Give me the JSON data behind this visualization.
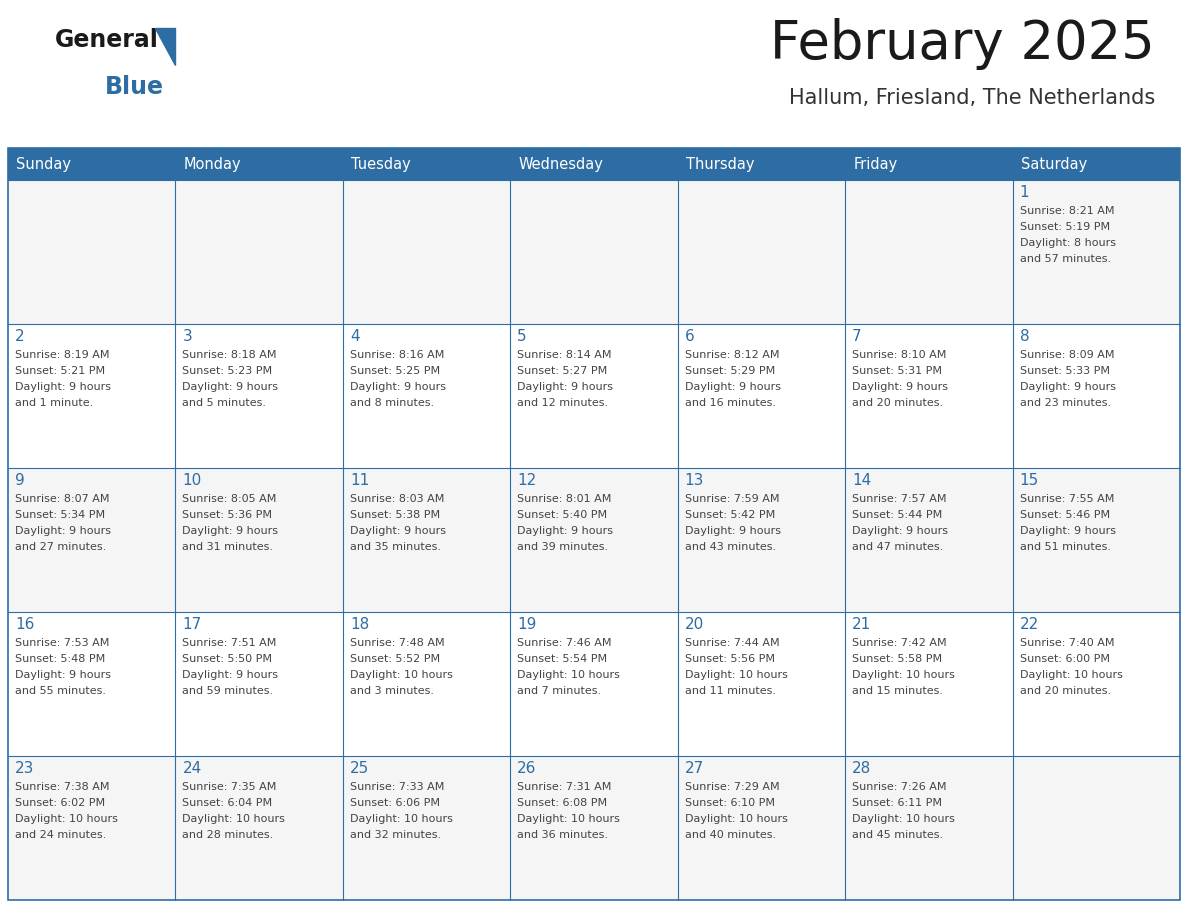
{
  "title": "February 2025",
  "subtitle": "Hallum, Friesland, The Netherlands",
  "header_bg": "#2E6DA4",
  "header_text": "#FFFFFF",
  "cell_bg_odd": "#F5F5F5",
  "cell_bg_even": "#FFFFFF",
  "border_color": "#2E6DA4",
  "title_color": "#1a1a1a",
  "subtitle_color": "#333333",
  "day_number_color": "#2E6DA4",
  "cell_text_color": "#444444",
  "days_of_week": [
    "Sunday",
    "Monday",
    "Tuesday",
    "Wednesday",
    "Thursday",
    "Friday",
    "Saturday"
  ],
  "weeks": [
    [
      {
        "day": null,
        "info": null
      },
      {
        "day": null,
        "info": null
      },
      {
        "day": null,
        "info": null
      },
      {
        "day": null,
        "info": null
      },
      {
        "day": null,
        "info": null
      },
      {
        "day": null,
        "info": null
      },
      {
        "day": 1,
        "info": "Sunrise: 8:21 AM\nSunset: 5:19 PM\nDaylight: 8 hours\nand 57 minutes."
      }
    ],
    [
      {
        "day": 2,
        "info": "Sunrise: 8:19 AM\nSunset: 5:21 PM\nDaylight: 9 hours\nand 1 minute."
      },
      {
        "day": 3,
        "info": "Sunrise: 8:18 AM\nSunset: 5:23 PM\nDaylight: 9 hours\nand 5 minutes."
      },
      {
        "day": 4,
        "info": "Sunrise: 8:16 AM\nSunset: 5:25 PM\nDaylight: 9 hours\nand 8 minutes."
      },
      {
        "day": 5,
        "info": "Sunrise: 8:14 AM\nSunset: 5:27 PM\nDaylight: 9 hours\nand 12 minutes."
      },
      {
        "day": 6,
        "info": "Sunrise: 8:12 AM\nSunset: 5:29 PM\nDaylight: 9 hours\nand 16 minutes."
      },
      {
        "day": 7,
        "info": "Sunrise: 8:10 AM\nSunset: 5:31 PM\nDaylight: 9 hours\nand 20 minutes."
      },
      {
        "day": 8,
        "info": "Sunrise: 8:09 AM\nSunset: 5:33 PM\nDaylight: 9 hours\nand 23 minutes."
      }
    ],
    [
      {
        "day": 9,
        "info": "Sunrise: 8:07 AM\nSunset: 5:34 PM\nDaylight: 9 hours\nand 27 minutes."
      },
      {
        "day": 10,
        "info": "Sunrise: 8:05 AM\nSunset: 5:36 PM\nDaylight: 9 hours\nand 31 minutes."
      },
      {
        "day": 11,
        "info": "Sunrise: 8:03 AM\nSunset: 5:38 PM\nDaylight: 9 hours\nand 35 minutes."
      },
      {
        "day": 12,
        "info": "Sunrise: 8:01 AM\nSunset: 5:40 PM\nDaylight: 9 hours\nand 39 minutes."
      },
      {
        "day": 13,
        "info": "Sunrise: 7:59 AM\nSunset: 5:42 PM\nDaylight: 9 hours\nand 43 minutes."
      },
      {
        "day": 14,
        "info": "Sunrise: 7:57 AM\nSunset: 5:44 PM\nDaylight: 9 hours\nand 47 minutes."
      },
      {
        "day": 15,
        "info": "Sunrise: 7:55 AM\nSunset: 5:46 PM\nDaylight: 9 hours\nand 51 minutes."
      }
    ],
    [
      {
        "day": 16,
        "info": "Sunrise: 7:53 AM\nSunset: 5:48 PM\nDaylight: 9 hours\nand 55 minutes."
      },
      {
        "day": 17,
        "info": "Sunrise: 7:51 AM\nSunset: 5:50 PM\nDaylight: 9 hours\nand 59 minutes."
      },
      {
        "day": 18,
        "info": "Sunrise: 7:48 AM\nSunset: 5:52 PM\nDaylight: 10 hours\nand 3 minutes."
      },
      {
        "day": 19,
        "info": "Sunrise: 7:46 AM\nSunset: 5:54 PM\nDaylight: 10 hours\nand 7 minutes."
      },
      {
        "day": 20,
        "info": "Sunrise: 7:44 AM\nSunset: 5:56 PM\nDaylight: 10 hours\nand 11 minutes."
      },
      {
        "day": 21,
        "info": "Sunrise: 7:42 AM\nSunset: 5:58 PM\nDaylight: 10 hours\nand 15 minutes."
      },
      {
        "day": 22,
        "info": "Sunrise: 7:40 AM\nSunset: 6:00 PM\nDaylight: 10 hours\nand 20 minutes."
      }
    ],
    [
      {
        "day": 23,
        "info": "Sunrise: 7:38 AM\nSunset: 6:02 PM\nDaylight: 10 hours\nand 24 minutes."
      },
      {
        "day": 24,
        "info": "Sunrise: 7:35 AM\nSunset: 6:04 PM\nDaylight: 10 hours\nand 28 minutes."
      },
      {
        "day": 25,
        "info": "Sunrise: 7:33 AM\nSunset: 6:06 PM\nDaylight: 10 hours\nand 32 minutes."
      },
      {
        "day": 26,
        "info": "Sunrise: 7:31 AM\nSunset: 6:08 PM\nDaylight: 10 hours\nand 36 minutes."
      },
      {
        "day": 27,
        "info": "Sunrise: 7:29 AM\nSunset: 6:10 PM\nDaylight: 10 hours\nand 40 minutes."
      },
      {
        "day": 28,
        "info": "Sunrise: 7:26 AM\nSunset: 6:11 PM\nDaylight: 10 hours\nand 45 minutes."
      },
      {
        "day": null,
        "info": null
      }
    ]
  ]
}
